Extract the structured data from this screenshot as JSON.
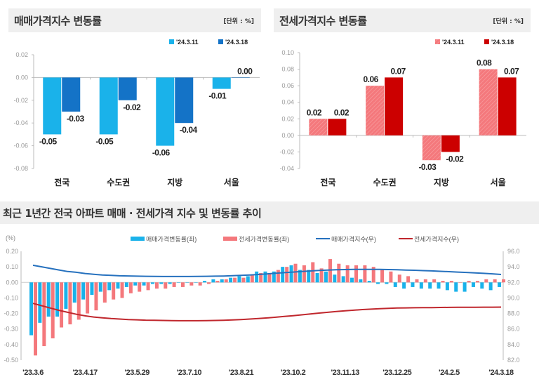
{
  "colors": {
    "sale_prev": "#1ab2ea",
    "sale_curr": "#1473c7",
    "jeonse_prev": "#f4787c",
    "jeonse_curr": "#cc0000",
    "sale_index": "#2671be",
    "jeonse_index": "#c0272d"
  },
  "chart_data": [
    {
      "type": "bar",
      "title": "매매가격지수 변동률",
      "unit": "[단위 : %]",
      "categories": [
        "전국",
        "수도권",
        "지방",
        "서울"
      ],
      "series": [
        {
          "name": "'24.3.11",
          "values": [
            -0.05,
            -0.05,
            -0.06,
            -0.01
          ]
        },
        {
          "name": "'24.3.18",
          "values": [
            -0.03,
            -0.02,
            -0.04,
            0.0
          ]
        }
      ],
      "ylim": [
        -0.08,
        0.02
      ],
      "yticks": [
        "0.02",
        "0.00",
        "-0.02",
        "-0.04",
        "-0.06",
        "-0.08"
      ],
      "legend": "top-right"
    },
    {
      "type": "bar",
      "title": "전세가격지수 변동률",
      "unit": "[단위 : %]",
      "categories": [
        "전국",
        "수도권",
        "지방",
        "서울"
      ],
      "series": [
        {
          "name": "'24.3.11",
          "values": [
            0.02,
            0.06,
            -0.03,
            0.08
          ]
        },
        {
          "name": "'24.3.18",
          "values": [
            0.02,
            0.07,
            -0.02,
            0.07
          ]
        }
      ],
      "ylim": [
        -0.04,
        0.1
      ],
      "yticks": [
        "0.10",
        "0.08",
        "0.06",
        "0.04",
        "0.02",
        "0.00",
        "-0.02",
        "-0.04"
      ],
      "legend": "top-right"
    },
    {
      "type": "bar+line",
      "title": "최근 1년간 전국 아파트 매매 · 전세가격 지수 및 변동률 추이",
      "ylabel_left": "(%)",
      "xticks": [
        "'23.3.6",
        "'23.4.17",
        "'23.5.29",
        "'23.7.10",
        "'23.8.21",
        "'23.10.2",
        "'23.11.13",
        "'23.12.25",
        "'24.2.5",
        "'24.3.18"
      ],
      "ylim_left": [
        -0.5,
        0.2
      ],
      "yticks_left": [
        "0.20",
        "0.10",
        "0.00",
        "-0.10",
        "-0.20",
        "-0.30",
        "-0.40",
        "-0.50"
      ],
      "ylim_right": [
        82.0,
        96.0
      ],
      "yticks_right": [
        "96.0",
        "94.0",
        "92.0",
        "90.0",
        "88.0",
        "86.0",
        "84.0",
        "82.0"
      ],
      "legend": "top",
      "series": [
        {
          "name": "매매가격변동률(좌)",
          "kind": "bar",
          "axis": "left",
          "values": [
            -0.34,
            -0.26,
            -0.22,
            -0.22,
            -0.17,
            -0.13,
            -0.11,
            -0.08,
            -0.06,
            -0.05,
            -0.04,
            -0.03,
            -0.02,
            -0.02,
            -0.01,
            -0.01,
            -0.01,
            0.0,
            0.0,
            0.0,
            0.01,
            0.02,
            0.02,
            0.03,
            0.04,
            0.04,
            0.07,
            0.07,
            0.07,
            0.1,
            0.11,
            0.08,
            0.08,
            0.06,
            0.07,
            0.05,
            0.04,
            0.03,
            0.02,
            0.01,
            -0.01,
            -0.01,
            -0.03,
            -0.04,
            -0.03,
            -0.04,
            -0.04,
            -0.04,
            -0.05,
            -0.06,
            -0.06,
            -0.03,
            -0.04,
            -0.05,
            -0.03
          ]
        },
        {
          "name": "전세가격변동률(좌)",
          "kind": "bar",
          "axis": "left",
          "values": [
            -0.47,
            -0.41,
            -0.36,
            -0.29,
            -0.27,
            -0.24,
            -0.2,
            -0.18,
            -0.13,
            -0.11,
            -0.1,
            -0.07,
            -0.06,
            -0.05,
            -0.04,
            -0.04,
            -0.03,
            -0.03,
            -0.02,
            -0.02,
            -0.01,
            0.01,
            0.02,
            0.03,
            0.03,
            0.05,
            0.06,
            0.06,
            0.08,
            0.1,
            0.12,
            0.11,
            0.13,
            0.09,
            0.15,
            0.12,
            0.11,
            0.11,
            0.11,
            0.1,
            0.08,
            0.07,
            0.05,
            0.04,
            0.02,
            0.02,
            0.02,
            0.01,
            0.01,
            0.0,
            0.01,
            0.01,
            0.02,
            0.02,
            0.02
          ]
        },
        {
          "name": "매매가격지수(우)",
          "kind": "line",
          "axis": "right",
          "values": [
            94.2,
            94.0,
            93.8,
            93.6,
            93.4,
            93.3,
            93.15,
            93.05,
            92.95,
            92.9,
            92.85,
            92.83,
            92.8,
            92.78,
            92.77,
            92.76,
            92.76,
            92.76,
            92.76,
            92.77,
            92.78,
            92.8,
            92.82,
            92.86,
            92.9,
            92.96,
            93.02,
            93.09,
            93.17,
            93.25,
            93.33,
            93.4,
            93.47,
            93.53,
            93.58,
            93.62,
            93.65,
            93.67,
            93.68,
            93.68,
            93.67,
            93.65,
            93.62,
            93.59,
            93.56,
            93.52,
            93.48,
            93.43,
            93.38,
            93.33,
            93.28,
            93.22,
            93.16,
            93.1,
            93.02
          ]
        },
        {
          "name": "전세가격지수(우)",
          "kind": "line",
          "axis": "right",
          "values": [
            89.3,
            89.0,
            88.7,
            88.4,
            88.15,
            87.9,
            87.7,
            87.55,
            87.45,
            87.35,
            87.28,
            87.22,
            87.18,
            87.14,
            87.12,
            87.1,
            87.08,
            87.07,
            87.07,
            87.07,
            87.08,
            87.1,
            87.13,
            87.17,
            87.22,
            87.28,
            87.35,
            87.43,
            87.52,
            87.62,
            87.72,
            87.83,
            87.94,
            88.05,
            88.15,
            88.25,
            88.34,
            88.42,
            88.5,
            88.56,
            88.62,
            88.66,
            88.7,
            88.72,
            88.74,
            88.75,
            88.76,
            88.77,
            88.78,
            88.79,
            88.8,
            88.8,
            88.81,
            88.81,
            88.82
          ]
        }
      ]
    }
  ]
}
